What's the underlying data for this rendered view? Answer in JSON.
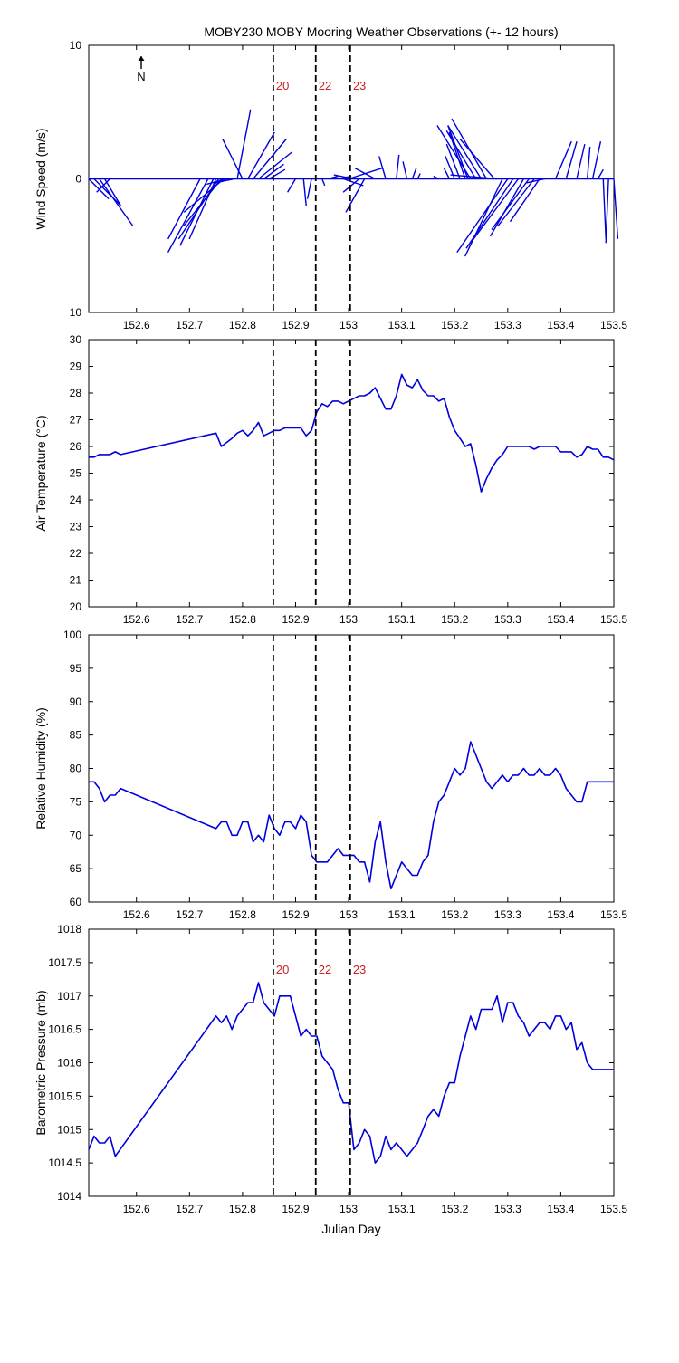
{
  "figure": {
    "title": "MOBY230 MOBY Mooring Weather Observations (+- 12 hours)",
    "xlabel": "Julian Day",
    "north_label": "N",
    "colors": {
      "series": "#0000dd",
      "event_label": "#cc2222",
      "axes": "#000000"
    }
  },
  "events": [
    {
      "label": "20",
      "x": 152.858
    },
    {
      "label": "22",
      "x": 152.938
    },
    {
      "label": "23",
      "x": 153.003
    }
  ],
  "chart_data": [
    {
      "type": "vector",
      "ylabel": "Wind Speed (m/s)",
      "xlim": [
        152.51,
        153.5
      ],
      "ylim": [
        -10,
        10
      ],
      "yticks": [
        "10",
        "0",
        "10"
      ],
      "xticks": [
        152.6,
        152.7,
        152.8,
        152.9,
        153.0,
        153.1,
        153.2,
        153.3,
        153.4,
        153.5
      ],
      "show_event_labels": true,
      "series": [
        {
          "x": [
            152.51,
            152.52,
            152.53,
            152.54,
            152.55,
            152.72,
            152.735,
            152.745,
            152.75,
            152.755,
            152.76,
            152.765,
            152.77,
            152.78,
            152.785,
            152.79,
            152.8,
            152.81,
            152.82,
            152.83,
            152.84,
            152.85,
            152.9,
            152.915,
            152.93,
            152.95,
            152.96,
            152.98,
            152.99,
            153.0,
            153.01,
            153.02,
            153.03,
            153.05,
            153.07,
            153.09,
            153.11,
            153.12,
            153.13,
            153.17,
            153.19,
            153.2,
            153.21,
            153.22,
            153.225,
            153.23,
            153.24,
            153.25,
            153.26,
            153.275,
            153.28,
            153.29,
            153.3,
            153.31,
            153.32,
            153.33,
            153.34,
            153.35,
            153.36,
            153.37,
            153.39,
            153.41,
            153.43,
            153.45,
            153.46,
            153.47,
            153.48,
            153.49,
            153.5
          ],
          "u": [
            1.5,
            2,
            2.5,
            1.2,
            -1,
            -2.4,
            -3,
            -2.5,
            -2,
            -3,
            -2.8,
            -3,
            -1.5,
            -1.2,
            -1,
            1,
            -1.5,
            2,
            2.5,
            2.5,
            1.5,
            1.2,
            -0.6,
            0.2,
            -0.3,
            0.2,
            0.8,
            1,
            1.5,
            2.5,
            -1.5,
            -1.2,
            -1.4,
            -1.5,
            -0.5,
            0.2,
            -0.3,
            0.3,
            0.2,
            -0.4,
            -0.4,
            -0.7,
            -1,
            -1.2,
            -1.5,
            -2.5,
            -2.2,
            -2.5,
            -2.6,
            -2.6,
            -3.5,
            -2.8,
            -3.8,
            -3.5,
            -3.5,
            -2.5,
            -2.8,
            -2.7,
            -2.2,
            -1.4,
            1.2,
            0.8,
            0.6,
            0.2,
            0.6,
            0.4,
            0.2,
            -0.2,
            0.3
          ],
          "v": [
            -1.5,
            -2,
            -3.5,
            -2,
            -1,
            -4.5,
            -5.5,
            -5,
            -4.5,
            -4.5,
            -3.5,
            -2.5,
            -0.4,
            -0.3,
            -0.2,
            5.2,
            3,
            3.5,
            3,
            2,
            1.1,
            0.7,
            -1,
            -2,
            -1.5,
            -0.5,
            0.2,
            0.2,
            -0.5,
            0.8,
            0.3,
            -1,
            -2.5,
            0.8,
            1.7,
            1.8,
            1.3,
            0.8,
            0.4,
            0.2,
            0.8,
            1.7,
            2.6,
            3.5,
            4,
            4,
            3.6,
            4,
            4.5,
            3,
            0.3,
            -5.8,
            -5.5,
            -5.2,
            -4.7,
            -4.3,
            -3.8,
            -3.5,
            -3.2,
            -0.3,
            2.8,
            2.8,
            2.6,
            2.4,
            2.8,
            0.7,
            -4.5,
            -4.8,
            -4.5
          ]
        }
      ]
    },
    {
      "type": "line",
      "ylabel": "Air Temperature (°C)",
      "xlim": [
        152.51,
        153.5
      ],
      "ylim": [
        20,
        30
      ],
      "yticks": [
        20,
        21,
        22,
        23,
        24,
        25,
        26,
        27,
        28,
        29,
        30
      ],
      "xticks": [
        152.6,
        152.7,
        152.8,
        152.9,
        153.0,
        153.1,
        153.2,
        153.3,
        153.4,
        153.5
      ],
      "show_event_labels": false,
      "series": [
        {
          "x": [
            152.51,
            152.52,
            152.53,
            152.54,
            152.55,
            152.56,
            152.57,
            152.75,
            152.76,
            152.78,
            152.79,
            152.8,
            152.81,
            152.82,
            152.83,
            152.84,
            152.85,
            152.86,
            152.87,
            152.88,
            152.9,
            152.91,
            152.92,
            152.93,
            152.94,
            152.95,
            152.96,
            152.97,
            152.98,
            152.99,
            153.0,
            153.01,
            153.02,
            153.03,
            153.04,
            153.05,
            153.06,
            153.07,
            153.08,
            153.09,
            153.1,
            153.11,
            153.12,
            153.13,
            153.14,
            153.15,
            153.16,
            153.17,
            153.18,
            153.19,
            153.2,
            153.21,
            153.22,
            153.23,
            153.24,
            153.25,
            153.26,
            153.27,
            153.28,
            153.29,
            153.3,
            153.31,
            153.32,
            153.33,
            153.34,
            153.35,
            153.36,
            153.37,
            153.38,
            153.39,
            153.4,
            153.41,
            153.42,
            153.43,
            153.44,
            153.45,
            153.46,
            153.47,
            153.48,
            153.49,
            153.5
          ],
          "y": [
            25.6,
            25.6,
            25.7,
            25.7,
            25.7,
            25.8,
            25.7,
            26.5,
            26.0,
            26.3,
            26.5,
            26.6,
            26.4,
            26.6,
            26.9,
            26.4,
            26.5,
            26.6,
            26.6,
            26.7,
            26.7,
            26.7,
            26.4,
            26.6,
            27.3,
            27.6,
            27.5,
            27.7,
            27.7,
            27.6,
            27.7,
            27.8,
            27.9,
            27.9,
            28.0,
            28.2,
            27.8,
            27.4,
            27.4,
            27.9,
            28.7,
            28.3,
            28.2,
            28.5,
            28.1,
            27.9,
            27.9,
            27.7,
            27.8,
            27.1,
            26.6,
            26.3,
            26.0,
            26.1,
            25.3,
            24.3,
            24.8,
            25.2,
            25.5,
            25.7,
            26.0,
            26.0,
            26.0,
            26.0,
            26.0,
            25.9,
            26.0,
            26.0,
            26.0,
            26.0,
            25.8,
            25.8,
            25.8,
            25.6,
            25.7,
            26.0,
            25.9,
            25.9,
            25.6,
            25.6,
            25.5
          ]
        }
      ]
    },
    {
      "type": "line",
      "ylabel": "Relative Humidity (%)",
      "xlim": [
        152.51,
        153.5
      ],
      "ylim": [
        60,
        100
      ],
      "yticks": [
        60,
        65,
        70,
        75,
        80,
        85,
        90,
        95,
        100
      ],
      "xticks": [
        152.6,
        152.7,
        152.8,
        152.9,
        153.0,
        153.1,
        153.2,
        153.3,
        153.4,
        153.5
      ],
      "show_event_labels": false,
      "series": [
        {
          "x": [
            152.51,
            152.52,
            152.53,
            152.54,
            152.55,
            152.56,
            152.57,
            152.75,
            152.76,
            152.77,
            152.78,
            152.79,
            152.8,
            152.81,
            152.82,
            152.83,
            152.84,
            152.85,
            152.86,
            152.87,
            152.88,
            152.89,
            152.9,
            152.91,
            152.92,
            152.93,
            152.94,
            152.95,
            152.96,
            152.97,
            152.98,
            152.99,
            153.0,
            153.01,
            153.02,
            153.03,
            153.04,
            153.05,
            153.06,
            153.07,
            153.08,
            153.09,
            153.1,
            153.11,
            153.12,
            153.13,
            153.14,
            153.15,
            153.16,
            153.17,
            153.18,
            153.19,
            153.2,
            153.21,
            153.22,
            153.23,
            153.24,
            153.25,
            153.26,
            153.27,
            153.28,
            153.29,
            153.3,
            153.31,
            153.32,
            153.33,
            153.34,
            153.35,
            153.36,
            153.37,
            153.38,
            153.39,
            153.4,
            153.41,
            153.42,
            153.43,
            153.44,
            153.45,
            153.46,
            153.47,
            153.48,
            153.49,
            153.5
          ],
          "y": [
            78,
            78,
            77,
            75,
            76,
            76,
            77,
            71,
            72,
            72,
            70,
            70,
            72,
            72,
            69,
            70,
            69,
            73,
            71,
            70,
            72,
            72,
            71,
            73,
            72,
            67,
            66,
            66,
            66,
            67,
            68,
            67,
            67,
            67,
            66,
            66,
            63,
            69,
            72,
            66,
            62,
            64,
            66,
            65,
            64,
            64,
            66,
            67,
            72,
            75,
            76,
            78,
            80,
            79,
            80,
            84,
            82,
            80,
            78,
            77,
            78,
            79,
            78,
            79,
            79,
            80,
            79,
            79,
            80,
            79,
            79,
            80,
            79,
            77,
            76,
            75,
            75,
            78,
            78,
            78,
            78,
            78,
            78
          ]
        }
      ]
    },
    {
      "type": "line",
      "ylabel": "Barometric Pressure (mb)",
      "xlim": [
        152.51,
        153.5
      ],
      "ylim": [
        1014,
        1018
      ],
      "yticks": [
        1014,
        1014.5,
        1015,
        1015.5,
        1016,
        1016.5,
        1017,
        1017.5,
        1018
      ],
      "xticks": [
        152.6,
        152.7,
        152.8,
        152.9,
        153.0,
        153.1,
        153.2,
        153.3,
        153.4,
        153.5
      ],
      "show_event_labels": true,
      "series": [
        {
          "x": [
            152.51,
            152.52,
            152.53,
            152.54,
            152.55,
            152.56,
            152.75,
            152.76,
            152.77,
            152.78,
            152.79,
            152.8,
            152.81,
            152.82,
            152.83,
            152.84,
            152.85,
            152.86,
            152.87,
            152.88,
            152.89,
            152.9,
            152.91,
            152.92,
            152.93,
            152.94,
            152.95,
            152.96,
            152.97,
            152.98,
            152.99,
            153.0,
            153.01,
            153.02,
            153.03,
            153.04,
            153.05,
            153.06,
            153.07,
            153.08,
            153.09,
            153.1,
            153.11,
            153.12,
            153.13,
            153.14,
            153.15,
            153.16,
            153.17,
            153.18,
            153.19,
            153.2,
            153.21,
            153.22,
            153.23,
            153.24,
            153.25,
            153.26,
            153.27,
            153.28,
            153.29,
            153.3,
            153.31,
            153.32,
            153.33,
            153.34,
            153.35,
            153.36,
            153.37,
            153.38,
            153.39,
            153.4,
            153.41,
            153.42,
            153.43,
            153.44,
            153.45,
            153.46,
            153.47,
            153.48,
            153.49,
            153.5
          ],
          "y": [
            1014.7,
            1014.9,
            1014.8,
            1014.8,
            1014.9,
            1014.6,
            1016.7,
            1016.6,
            1016.7,
            1016.5,
            1016.7,
            1016.8,
            1016.9,
            1016.9,
            1017.2,
            1016.9,
            1016.8,
            1016.7,
            1017.0,
            1017.0,
            1017.0,
            1016.7,
            1016.4,
            1016.5,
            1016.4,
            1016.4,
            1016.1,
            1016.0,
            1015.9,
            1015.6,
            1015.4,
            1015.4,
            1014.7,
            1014.8,
            1015.0,
            1014.9,
            1014.5,
            1014.6,
            1014.9,
            1014.7,
            1014.8,
            1014.7,
            1014.6,
            1014.7,
            1014.8,
            1015.0,
            1015.2,
            1015.3,
            1015.2,
            1015.5,
            1015.7,
            1015.7,
            1016.1,
            1016.4,
            1016.7,
            1016.5,
            1016.8,
            1016.8,
            1016.8,
            1017.0,
            1016.6,
            1016.9,
            1016.9,
            1016.7,
            1016.6,
            1016.4,
            1016.5,
            1016.6,
            1016.6,
            1016.5,
            1016.7,
            1016.7,
            1016.5,
            1016.6,
            1016.2,
            1016.3,
            1016.0,
            1015.9,
            1015.9,
            1015.9,
            1015.9,
            1015.9
          ]
        }
      ]
    }
  ]
}
